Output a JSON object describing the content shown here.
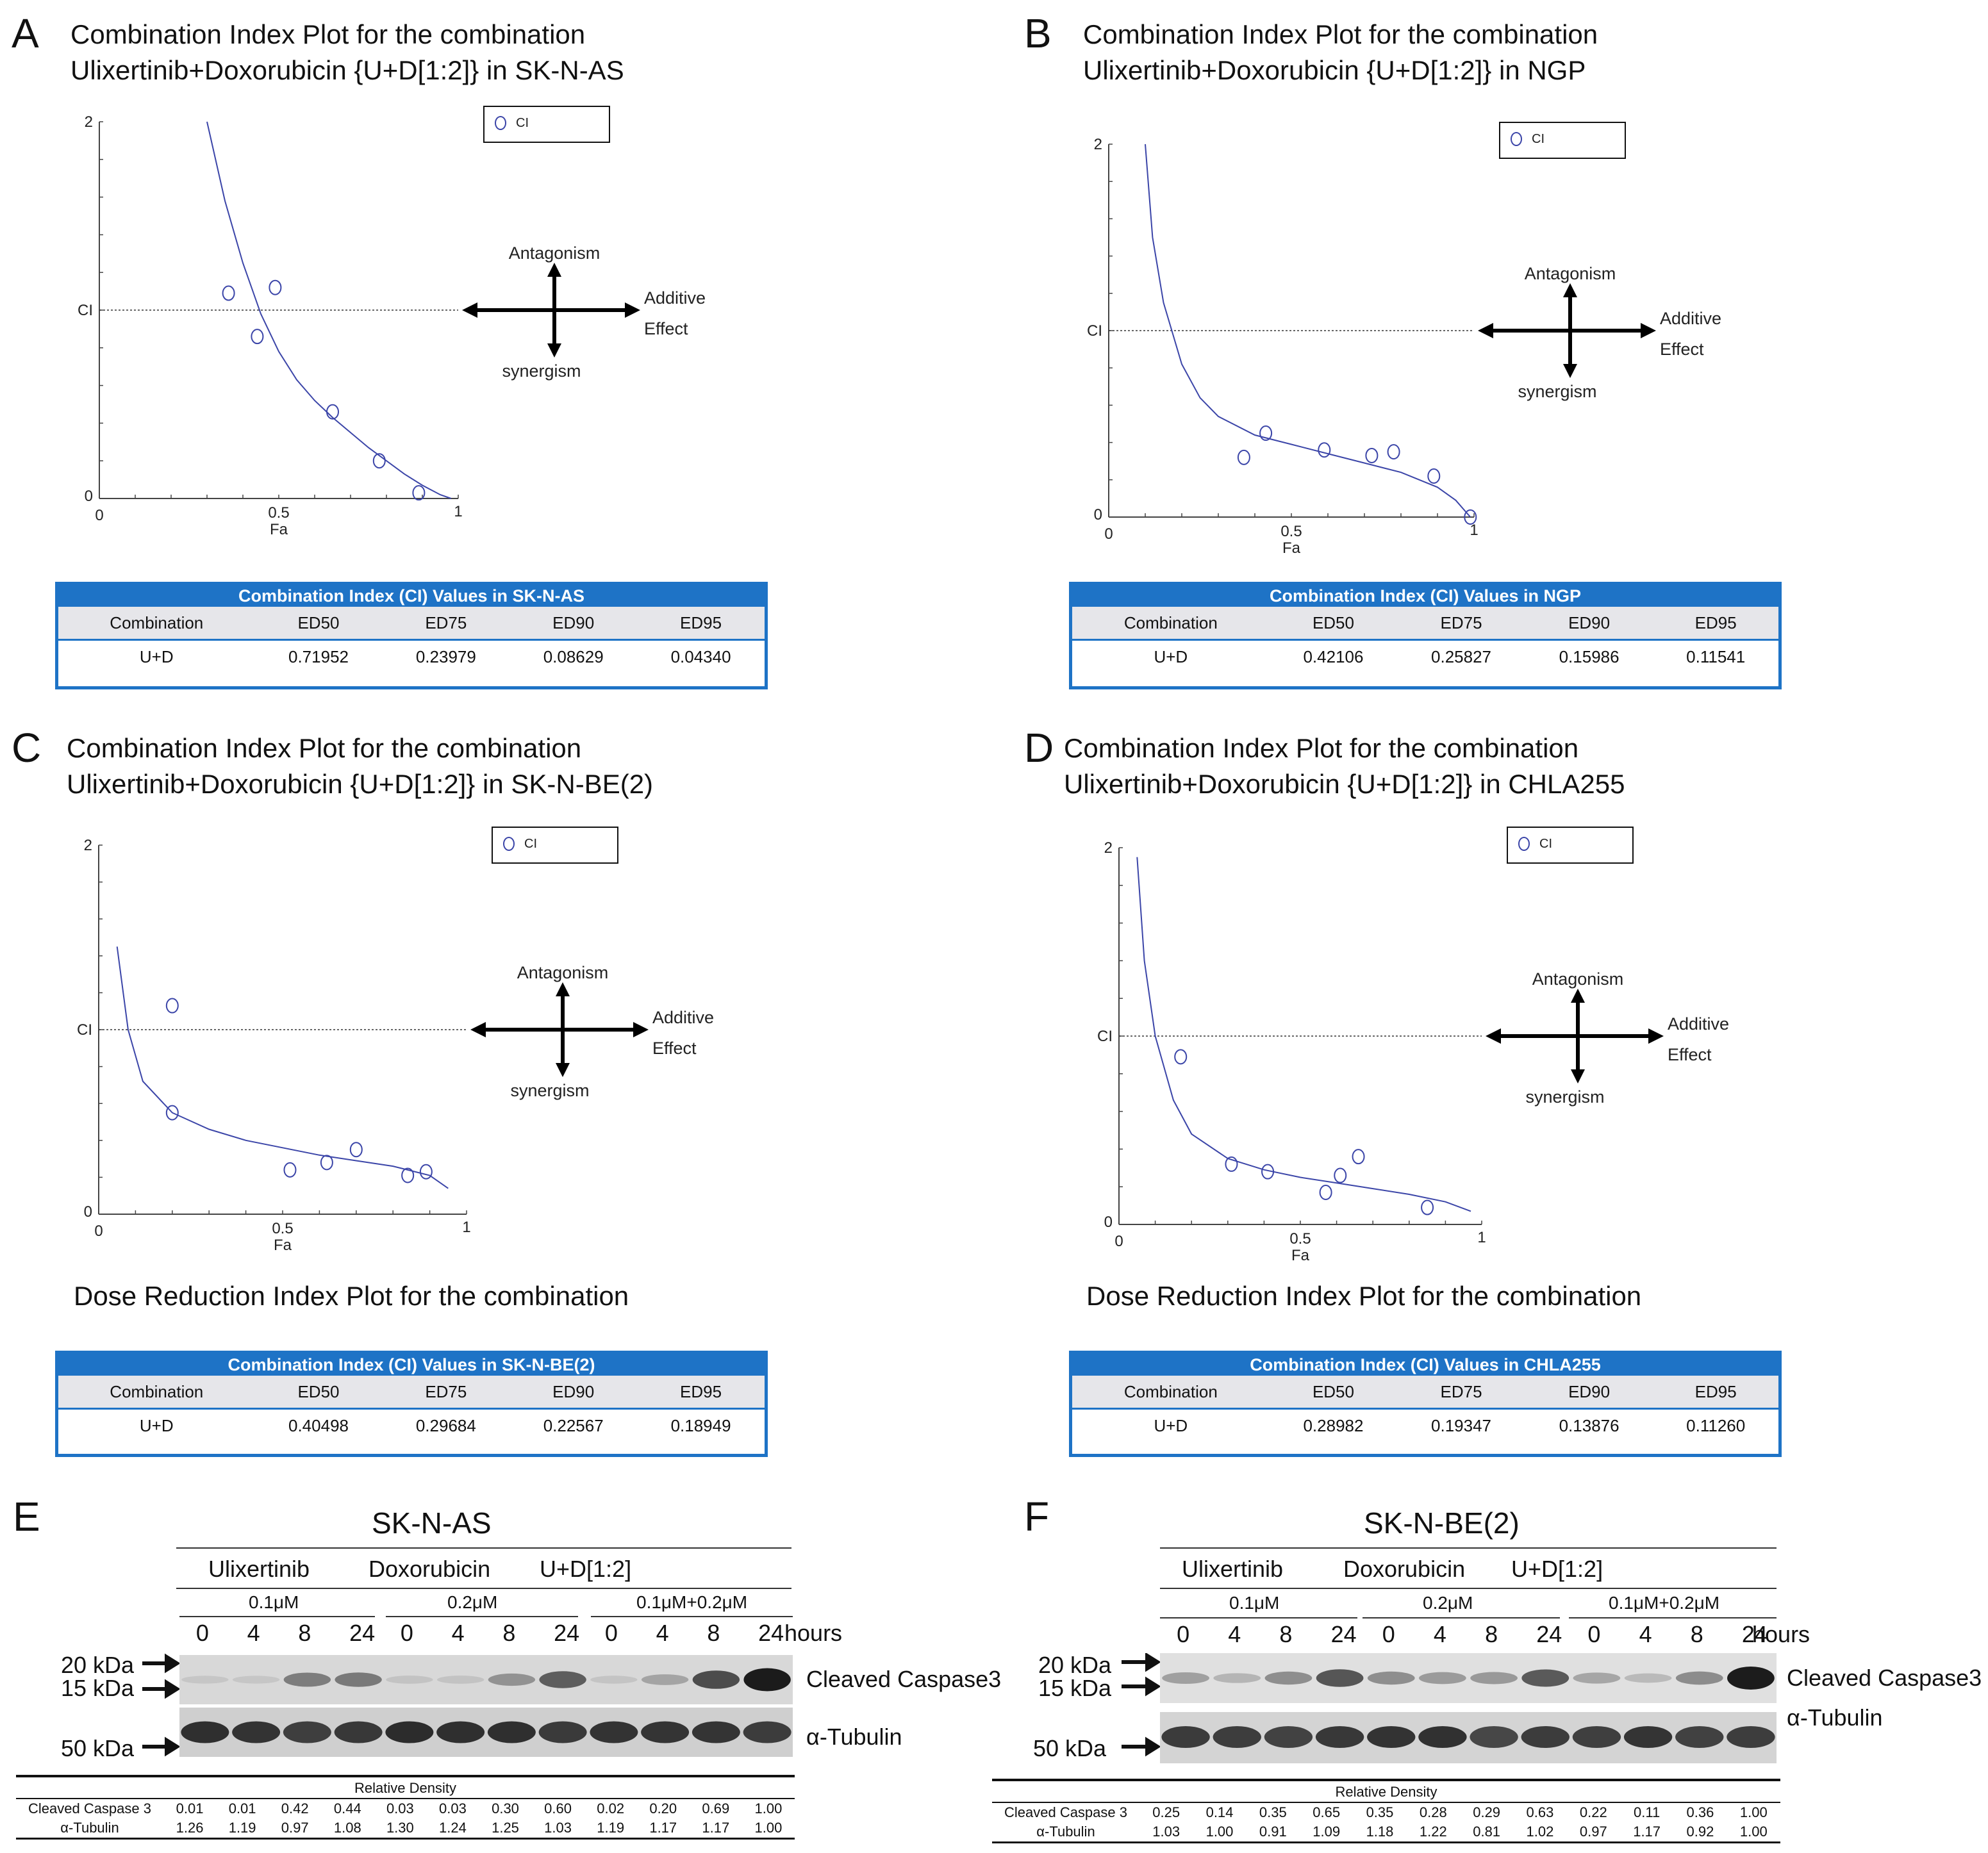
{
  "panels": {
    "A": {
      "letter": "A",
      "title_line1": "Combination Index Plot for the combination",
      "title_line2": "Ulixertinib+Doxorubicin {U+D[1:2]} in SK-N-AS",
      "legend": "CI",
      "axis": {
        "y_top": "2",
        "y_mid": "CI",
        "y_bottom": "0",
        "x_min": "0",
        "x_mid": "0.5",
        "x_max": "1",
        "xlabel": "Fa"
      },
      "arrows": {
        "up": "Antagonism",
        "down": "synergism",
        "right1": "Additive",
        "right2": "Effect"
      },
      "chart_data": {
        "type": "scatter",
        "title": "Combination Index Plot",
        "xlabel": "Fa",
        "ylabel": "CI",
        "xlim": [
          0,
          1
        ],
        "ylim": [
          0,
          2
        ],
        "reference_line": 1,
        "points": [
          [
            0.36,
            1.09
          ],
          [
            0.49,
            1.12
          ],
          [
            0.44,
            0.86
          ],
          [
            0.65,
            0.46
          ],
          [
            0.78,
            0.2
          ],
          [
            0.89,
            0.03
          ]
        ],
        "fit_curve": [
          [
            0.3,
            2.0
          ],
          [
            0.35,
            1.58
          ],
          [
            0.4,
            1.25
          ],
          [
            0.45,
            0.98
          ],
          [
            0.5,
            0.78
          ],
          [
            0.55,
            0.63
          ],
          [
            0.6,
            0.52
          ],
          [
            0.65,
            0.43
          ],
          [
            0.7,
            0.35
          ],
          [
            0.75,
            0.27
          ],
          [
            0.8,
            0.2
          ],
          [
            0.85,
            0.13
          ],
          [
            0.9,
            0.07
          ],
          [
            0.95,
            0.02
          ],
          [
            0.98,
            0.0
          ]
        ]
      },
      "table": {
        "title": "Combination Index (CI) Values in SK-N-AS",
        "headers": [
          "Combination",
          "ED50",
          "ED75",
          "ED90",
          "ED95"
        ],
        "row": [
          "U+D",
          "0.71952",
          "0.23979",
          "0.08629",
          "0.04340"
        ]
      }
    },
    "B": {
      "letter": "B",
      "title_line1": "Combination Index Plot for the combination",
      "title_line2": "Ulixertinib+Doxorubicin {U+D[1:2]} in NGP",
      "legend": "CI",
      "axis": {
        "y_top": "2",
        "y_mid": "CI",
        "y_bottom": "0",
        "x_min": "0",
        "x_mid": "0.5",
        "x_max": "1",
        "xlabel": "Fa"
      },
      "arrows": {
        "up": "Antagonism",
        "down": "synergism",
        "right1": "Additive",
        "right2": "Effect"
      },
      "chart_data": {
        "type": "scatter",
        "title": "Combination Index Plot",
        "xlabel": "Fa",
        "ylabel": "CI",
        "xlim": [
          0,
          1
        ],
        "ylim": [
          0,
          2
        ],
        "reference_line": 1,
        "points": [
          [
            0.37,
            0.32
          ],
          [
            0.43,
            0.45
          ],
          [
            0.59,
            0.36
          ],
          [
            0.72,
            0.33
          ],
          [
            0.78,
            0.35
          ],
          [
            0.89,
            0.22
          ],
          [
            0.99,
            0.0
          ]
        ],
        "fit_curve": [
          [
            0.1,
            2.0
          ],
          [
            0.12,
            1.5
          ],
          [
            0.15,
            1.15
          ],
          [
            0.2,
            0.82
          ],
          [
            0.25,
            0.64
          ],
          [
            0.3,
            0.54
          ],
          [
            0.4,
            0.44
          ],
          [
            0.5,
            0.39
          ],
          [
            0.6,
            0.34
          ],
          [
            0.7,
            0.29
          ],
          [
            0.8,
            0.24
          ],
          [
            0.9,
            0.16
          ],
          [
            0.95,
            0.09
          ],
          [
            0.99,
            0.0
          ]
        ]
      },
      "table": {
        "title": "Combination Index (CI) Values in NGP",
        "headers": [
          "Combination",
          "ED50",
          "ED75",
          "ED90",
          "ED95"
        ],
        "row": [
          "U+D",
          "0.42106",
          "0.25827",
          "0.15986",
          "0.11541"
        ]
      }
    },
    "C": {
      "letter": "C",
      "title_line1": "Combination Index Plot for the combination",
      "title_line2": "Ulixertinib+Doxorubicin {U+D[1:2]} in SK-N-BE(2)",
      "legend": "CI",
      "axis": {
        "y_top": "2",
        "y_mid": "CI",
        "y_bottom": "0",
        "x_min": "0",
        "x_mid": "0.5",
        "x_max": "1",
        "xlabel": "Fa"
      },
      "arrows": {
        "up": "Antagonism",
        "down": "synergism",
        "right1": "Additive",
        "right2": "Effect"
      },
      "subtitle": "Dose Reduction Index Plot for the combination",
      "chart_data": {
        "type": "scatter",
        "title": "Combination Index Plot",
        "xlabel": "Fa",
        "ylabel": "CI",
        "xlim": [
          0,
          1
        ],
        "ylim": [
          0,
          2
        ],
        "reference_line": 1,
        "points": [
          [
            0.2,
            1.13
          ],
          [
            0.2,
            0.55
          ],
          [
            0.52,
            0.24
          ],
          [
            0.62,
            0.28
          ],
          [
            0.7,
            0.35
          ],
          [
            0.84,
            0.21
          ],
          [
            0.89,
            0.23
          ]
        ],
        "fit_curve": [
          [
            0.05,
            1.45
          ],
          [
            0.08,
            1.0
          ],
          [
            0.12,
            0.72
          ],
          [
            0.2,
            0.55
          ],
          [
            0.3,
            0.46
          ],
          [
            0.4,
            0.4
          ],
          [
            0.5,
            0.36
          ],
          [
            0.6,
            0.32
          ],
          [
            0.7,
            0.29
          ],
          [
            0.8,
            0.26
          ],
          [
            0.9,
            0.21
          ],
          [
            0.95,
            0.14
          ]
        ]
      },
      "table": {
        "title": "Combination Index (CI) Values in SK-N-BE(2)",
        "headers": [
          "Combination",
          "ED50",
          "ED75",
          "ED90",
          "ED95"
        ],
        "row": [
          "U+D",
          "0.40498",
          "0.29684",
          "0.22567",
          "0.18949"
        ]
      }
    },
    "D": {
      "letter": "D",
      "title_line1": "Combination Index Plot for the combination",
      "title_line2": "Ulixertinib+Doxorubicin {U+D[1:2]} in CHLA255",
      "legend": "CI",
      "axis": {
        "y_top": "2",
        "y_mid": "CI",
        "y_bottom": "0",
        "x_min": "0",
        "x_mid": "0.5",
        "x_max": "1",
        "xlabel": "Fa"
      },
      "arrows": {
        "up": "Antagonism",
        "down": "synergism",
        "right1": "Additive",
        "right2": "Effect"
      },
      "subtitle": "Dose Reduction Index Plot for the combination",
      "chart_data": {
        "type": "scatter",
        "title": "Combination Index Plot",
        "xlabel": "Fa",
        "ylabel": "CI",
        "xlim": [
          0,
          1
        ],
        "ylim": [
          0,
          2
        ],
        "reference_line": 1,
        "points": [
          [
            0.17,
            0.89
          ],
          [
            0.31,
            0.32
          ],
          [
            0.41,
            0.28
          ],
          [
            0.57,
            0.17
          ],
          [
            0.61,
            0.26
          ],
          [
            0.66,
            0.36
          ],
          [
            0.85,
            0.09
          ]
        ],
        "fit_curve": [
          [
            0.05,
            1.95
          ],
          [
            0.07,
            1.4
          ],
          [
            0.1,
            1.0
          ],
          [
            0.15,
            0.66
          ],
          [
            0.2,
            0.48
          ],
          [
            0.3,
            0.35
          ],
          [
            0.4,
            0.29
          ],
          [
            0.5,
            0.25
          ],
          [
            0.6,
            0.22
          ],
          [
            0.7,
            0.19
          ],
          [
            0.8,
            0.16
          ],
          [
            0.9,
            0.12
          ],
          [
            0.97,
            0.07
          ]
        ]
      },
      "table": {
        "title": "Combination Index (CI) Values in CHLA255",
        "headers": [
          "Combination",
          "ED50",
          "ED75",
          "ED90",
          "ED95"
        ],
        "row": [
          "U+D",
          "0.28982",
          "0.19347",
          "0.13876",
          "0.11260"
        ]
      }
    }
  },
  "blots": {
    "E": {
      "letter": "E",
      "cell_line": "SK-N-AS",
      "treatments": [
        "Ulixertinib",
        "Doxorubicin",
        "U+D[1:2]"
      ],
      "doses": [
        "0.1μM",
        "0.2μM",
        "0.1μM+0.2μM"
      ],
      "timepoints": [
        "0",
        "4",
        "8",
        "24",
        "0",
        "4",
        "8",
        "24",
        "0",
        "4",
        "8",
        "24"
      ],
      "time_unit": "hours",
      "markers": [
        "20 kDa",
        "15 kDa",
        "50 kDa"
      ],
      "band_labels": [
        "Cleaved Caspase3",
        "α-Tubulin"
      ],
      "density_header": "Relative Density",
      "density_rows": [
        {
          "label": "Cleaved Caspase 3",
          "values": [
            "0.01",
            "0.01",
            "0.42",
            "0.44",
            "0.03",
            "0.03",
            "0.30",
            "0.60",
            "0.02",
            "0.20",
            "0.69",
            "1.00"
          ]
        },
        {
          "label": "α-Tubulin",
          "values": [
            "1.26",
            "1.19",
            "0.97",
            "1.08",
            "1.30",
            "1.24",
            "1.25",
            "1.03",
            "1.19",
            "1.17",
            "1.17",
            "1.00"
          ]
        }
      ]
    },
    "F": {
      "letter": "F",
      "cell_line": "SK-N-BE(2)",
      "treatments": [
        "Ulixertinib",
        "Doxorubicin",
        "U+D[1:2]"
      ],
      "doses": [
        "0.1μM",
        "0.2μM",
        "0.1μM+0.2μM"
      ],
      "timepoints": [
        "0",
        "4",
        "8",
        "24",
        "0",
        "4",
        "8",
        "24",
        "0",
        "4",
        "8",
        "24"
      ],
      "time_unit": "hours",
      "markers": [
        "20 kDa",
        "15 kDa",
        "50 kDa"
      ],
      "band_labels": [
        "Cleaved Caspase3",
        "α-Tubulin"
      ],
      "density_header": "Relative Density",
      "density_rows": [
        {
          "label": "Cleaved Caspase 3",
          "values": [
            "0.25",
            "0.14",
            "0.35",
            "0.65",
            "0.35",
            "0.28",
            "0.29",
            "0.63",
            "0.22",
            "0.11",
            "0.36",
            "1.00"
          ]
        },
        {
          "label": "α-Tubulin",
          "values": [
            "1.03",
            "1.00",
            "0.91",
            "1.09",
            "1.18",
            "1.22",
            "0.81",
            "1.02",
            "0.97",
            "1.17",
            "0.92",
            "1.00"
          ]
        }
      ]
    }
  },
  "colors": {
    "accent": "#1e73c6",
    "curve": "#3b45a8",
    "text": "#111111"
  }
}
